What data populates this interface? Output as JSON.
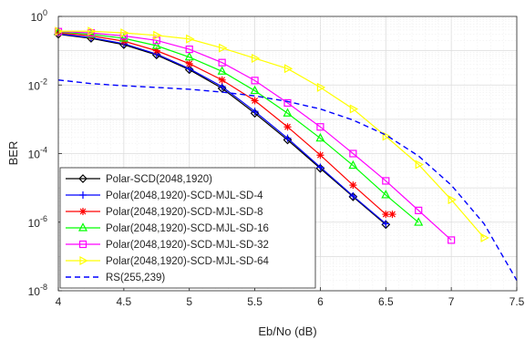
{
  "chart_data": {
    "type": "line",
    "title": "",
    "xlabel": "Eb/No (dB)",
    "ylabel": "BER",
    "xlim": [
      4,
      7.5
    ],
    "ylim_log10": [
      -8,
      0
    ],
    "yscale": "log",
    "grid": "on (major and minor)",
    "legend_placement": "bottom-left",
    "x_ticks": [
      "4",
      "4.5",
      "5",
      "5.5",
      "6",
      "6.5",
      "7",
      "7.5"
    ],
    "y_ticks": [
      {
        "base": "10",
        "exp": "-8"
      },
      {
        "base": "10",
        "exp": "-6"
      },
      {
        "base": "10",
        "exp": "-4"
      },
      {
        "base": "10",
        "exp": "-2"
      },
      {
        "base": "10",
        "exp": "0"
      }
    ],
    "series": [
      {
        "name": "Polar-SCD(2048,1920)",
        "color": "#000000",
        "marker": "diamond",
        "line": "solid",
        "x": [
          4,
          4.25,
          4.5,
          4.75,
          5,
          5.25,
          5.5,
          5.75,
          6,
          6.25,
          6.5
        ],
        "y": [
          0.3,
          0.23,
          0.15,
          0.075,
          0.028,
          0.008,
          0.0015,
          0.00025,
          3.7e-05,
          5.5e-06,
          8.5e-07
        ]
      },
      {
        "name": "Polar(2048,1920)-SCD-MJL-SD-4",
        "color": "#0000ff",
        "marker": "plus",
        "line": "solid",
        "x": [
          4,
          4.25,
          4.5,
          4.75,
          5,
          5.25,
          5.5,
          5.75,
          6,
          6.25,
          6.5
        ],
        "y": [
          0.31,
          0.24,
          0.16,
          0.08,
          0.03,
          0.009,
          0.0017,
          0.00028,
          4e-05,
          5.8e-06,
          9e-07
        ]
      },
      {
        "name": "Polar(2048,1920)-SCD-MJL-SD-8",
        "color": "#ff0000",
        "marker": "asterisk",
        "line": "solid",
        "x": [
          4,
          4.25,
          4.5,
          4.75,
          5,
          5.25,
          5.5,
          5.75,
          6,
          6.25,
          6.5,
          6.55
        ],
        "y": [
          0.33,
          0.27,
          0.19,
          0.1,
          0.042,
          0.014,
          0.0035,
          0.0006,
          9e-05,
          1.2e-05,
          1.7e-06,
          1.7e-06
        ]
      },
      {
        "name": "Polar(2048,1920)-SCD-MJL-SD-16",
        "color": "#00ff00",
        "marker": "triangle",
        "line": "solid",
        "x": [
          4,
          4.25,
          4.5,
          4.75,
          5,
          5.25,
          5.5,
          5.75,
          6,
          6.25,
          6.5,
          6.75
        ],
        "y": [
          0.35,
          0.3,
          0.23,
          0.14,
          0.065,
          0.025,
          0.0068,
          0.0015,
          0.00028,
          4.5e-05,
          6.2e-06,
          9.8e-07
        ]
      },
      {
        "name": "Polar(2048,1920)-SCD-MJL-SD-32",
        "color": "#ff00ff",
        "marker": "square",
        "line": "solid",
        "x": [
          4,
          4.25,
          4.5,
          4.75,
          5,
          5.25,
          5.5,
          5.75,
          6,
          6.25,
          6.5,
          6.75,
          7
        ],
        "y": [
          0.36,
          0.33,
          0.27,
          0.2,
          0.11,
          0.045,
          0.0135,
          0.003,
          0.0006,
          0.0001,
          1.6e-05,
          2.2e-06,
          3e-07
        ]
      },
      {
        "name": "Polar(2048,1920)-SCD-MJL-SD-64",
        "color": "#ffff00",
        "marker": "triangle-right",
        "line": "solid",
        "x": [
          4,
          4.25,
          4.5,
          4.75,
          5,
          5.25,
          5.5,
          5.75,
          6,
          6.25,
          6.5,
          6.75,
          7,
          7.25
        ],
        "y": [
          0.37,
          0.37,
          0.33,
          0.28,
          0.22,
          0.12,
          0.06,
          0.03,
          0.0085,
          0.002,
          0.00032,
          4.8e-05,
          4.5e-06,
          3.5e-07
        ]
      },
      {
        "name": "RS(255,239)",
        "color": "#0000ff",
        "marker": "none",
        "line": "dashed",
        "x": [
          4,
          4.25,
          4.5,
          4.75,
          5,
          5.25,
          5.5,
          5.75,
          6,
          6.25,
          6.5,
          6.75,
          7,
          7.25,
          7.5
        ],
        "y": [
          0.014,
          0.011,
          0.0095,
          0.0085,
          0.0075,
          0.0062,
          0.0048,
          0.0033,
          0.002,
          0.00095,
          0.00035,
          8.5e-05,
          1.2e-05,
          9e-07,
          2e-08
        ]
      }
    ]
  }
}
